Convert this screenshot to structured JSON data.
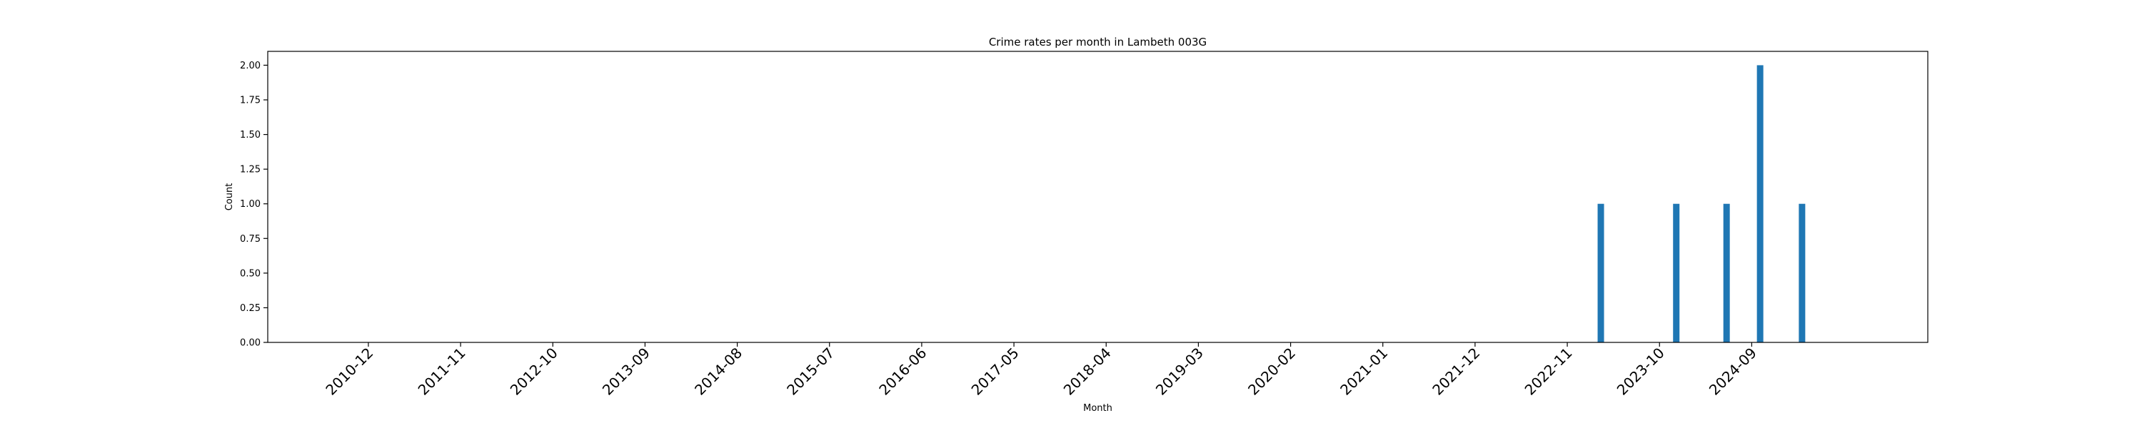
{
  "chart_data": {
    "type": "bar",
    "title": "Crime rates per month in Lambeth 003G",
    "xlabel": "Month",
    "ylabel": "Count",
    "ylim": [
      0,
      2.1
    ],
    "yticks": [
      0,
      0.25,
      0.5,
      0.75,
      1.0,
      1.25,
      1.5,
      1.75,
      2.0
    ],
    "ytick_labels": [
      "0.00",
      "0.25",
      "0.50",
      "0.75",
      "1.00",
      "1.25",
      "1.50",
      "1.75",
      "2.00"
    ],
    "x_range_months": [
      "2009-12",
      "2026-06"
    ],
    "xtick_labels": [
      "2010-12",
      "2011-11",
      "2012-10",
      "2013-09",
      "2014-08",
      "2015-07",
      "2016-06",
      "2017-05",
      "2018-04",
      "2019-03",
      "2020-02",
      "2021-01",
      "2021-12",
      "2022-11",
      "2023-10",
      "2024-09"
    ],
    "categories": [
      "2023-03",
      "2023-12",
      "2024-06",
      "2024-10",
      "2025-03"
    ],
    "values": [
      1,
      1,
      1,
      2,
      1
    ],
    "bar_color": "#1f77b4",
    "grid": false
  }
}
